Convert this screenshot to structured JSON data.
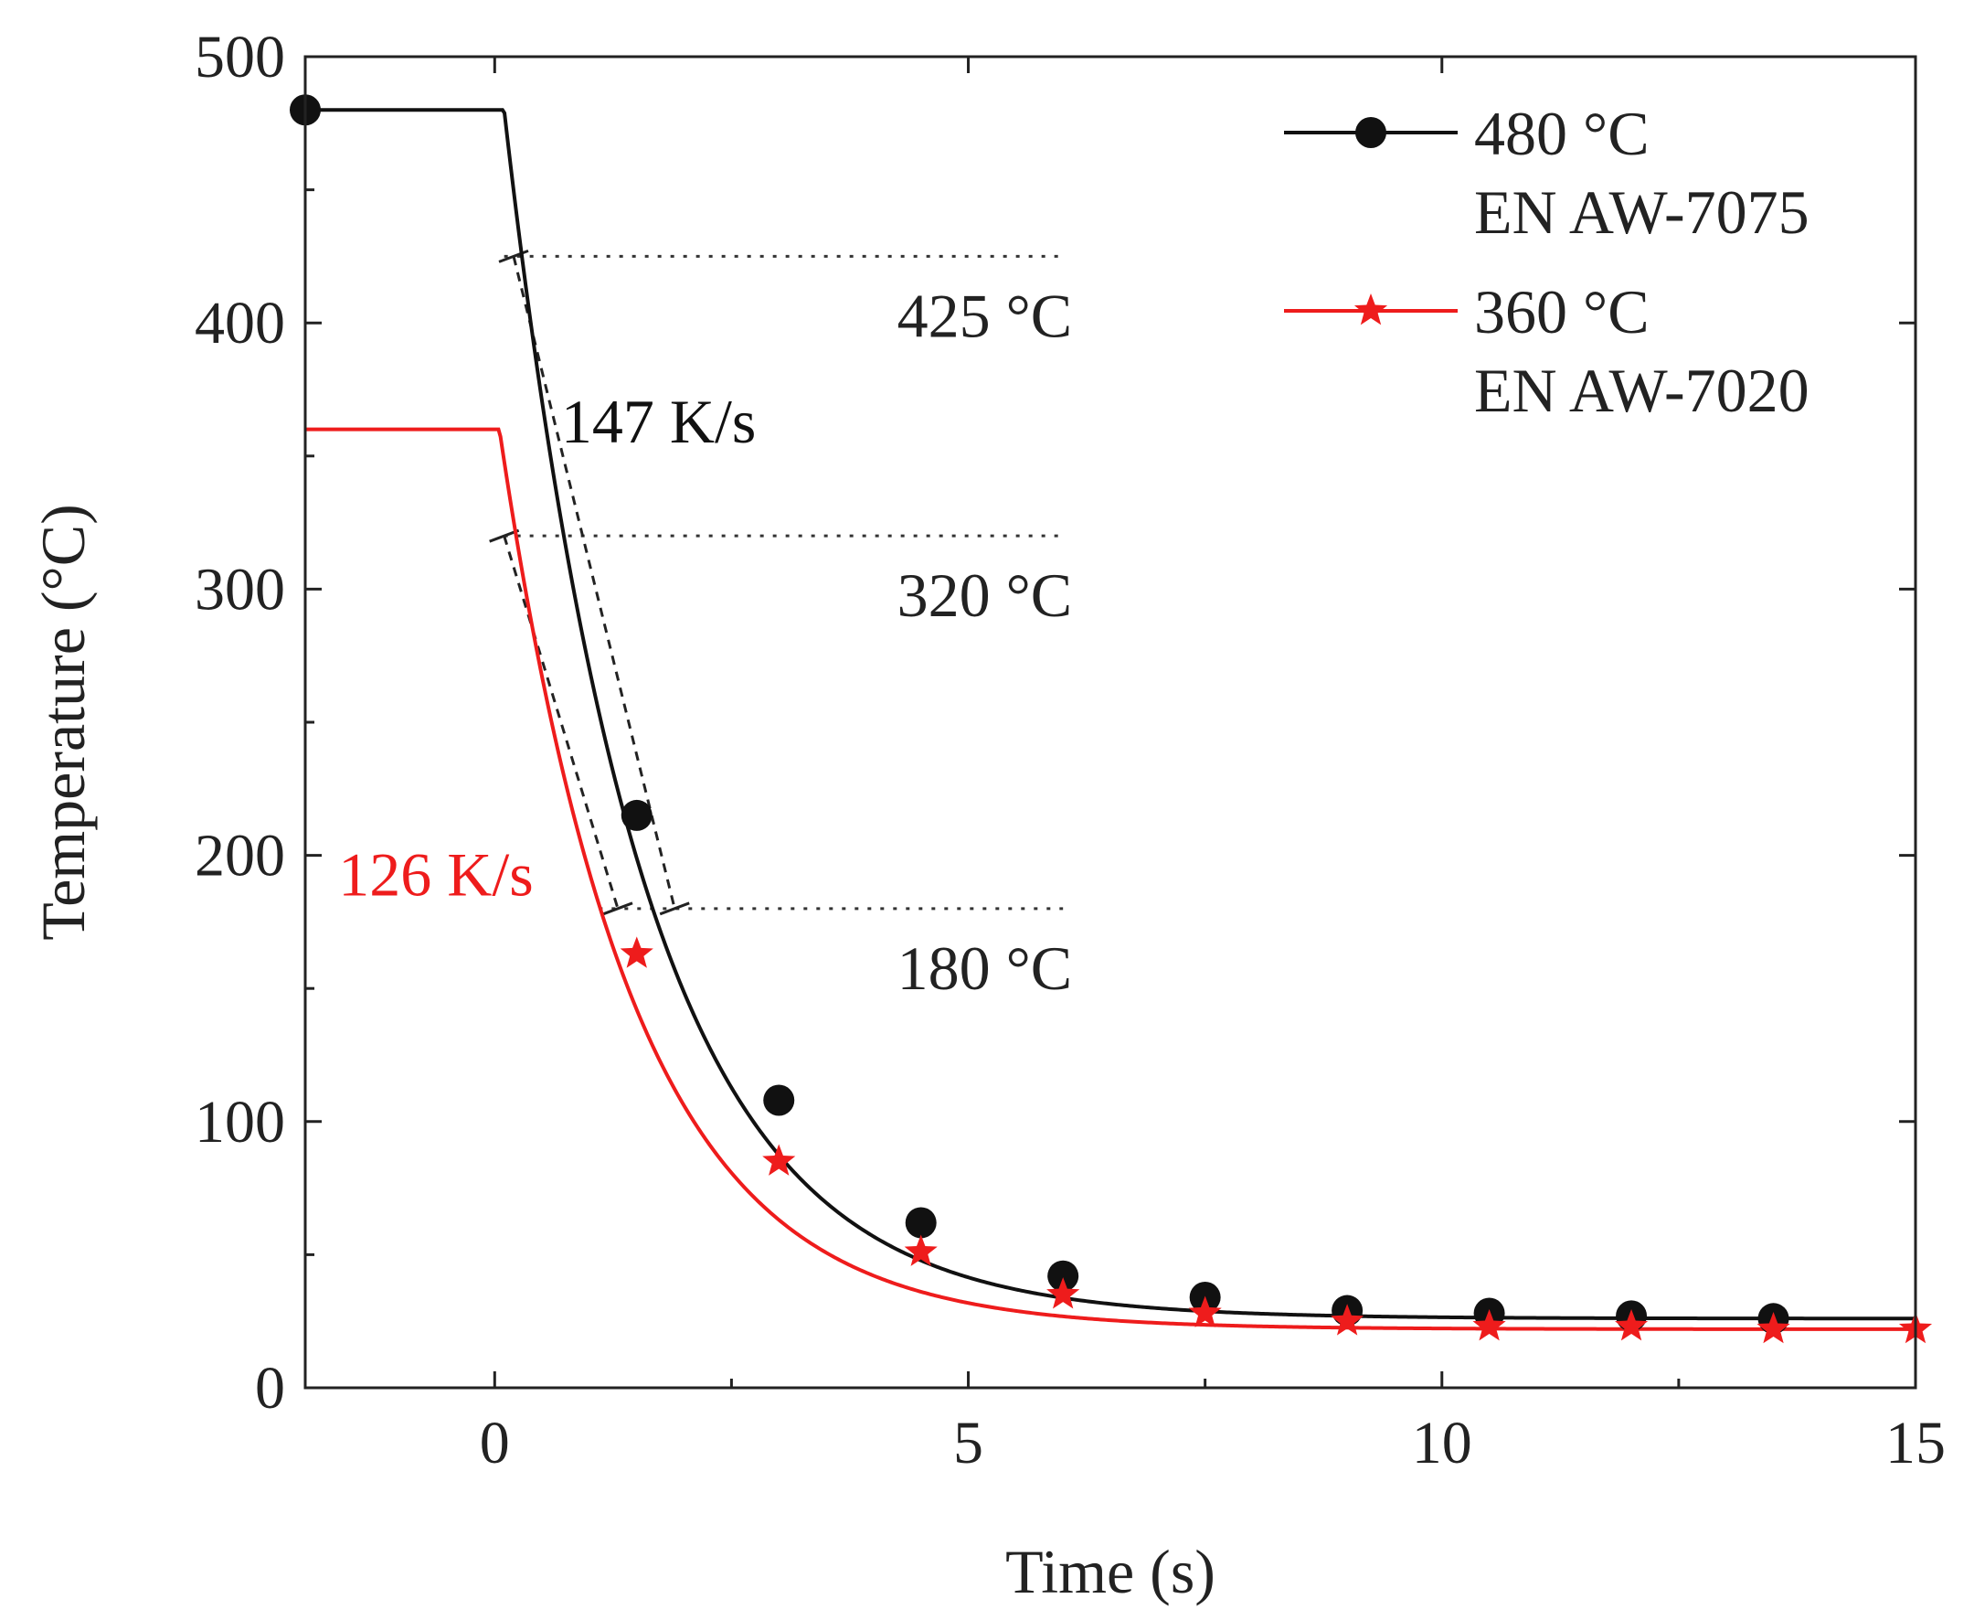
{
  "chart_data": {
    "type": "line",
    "title": "",
    "xlabel": "Time (s)",
    "ylabel": "Temperature (°C)",
    "xlim": [
      -2,
      15
    ],
    "ylim": [
      0,
      500
    ],
    "xticks": [
      0,
      5,
      10,
      15
    ],
    "yticks": [
      0,
      100,
      200,
      300,
      400,
      500
    ],
    "xtick_labels": [
      "0",
      "5",
      "10",
      "15"
    ],
    "ytick_labels": [
      "0",
      "100",
      "200",
      "300",
      "400",
      "500"
    ],
    "grid": false,
    "legend_position": "top-right",
    "series": [
      {
        "name": "480 °C",
        "subtitle": "EN AW-7075",
        "color": "#111111",
        "marker": "circle",
        "hold_temperature": 480,
        "hold_start": -2,
        "cooling_start": 0.1,
        "ambient": 26,
        "tau": 1.45,
        "marker_x": [
          -2,
          1.5,
          3,
          4.5,
          6,
          7.5,
          9,
          10.5,
          12,
          13.5
        ],
        "marker_y": [
          480,
          215,
          108,
          62,
          42,
          34,
          29,
          28,
          27,
          26
        ]
      },
      {
        "name": "360 °C",
        "subtitle": "EN AW-7020",
        "color": "#ee1c1c",
        "marker": "star",
        "hold_temperature": 360,
        "hold_start": -2,
        "cooling_start": 0.05,
        "ambient": 22,
        "tau": 1.4,
        "marker_x": [
          1.5,
          3,
          4.5,
          6,
          7.5,
          9,
          10.5,
          12,
          13.5,
          15
        ],
        "marker_y": [
          163,
          85,
          51,
          35,
          28,
          25,
          23,
          23,
          22,
          22
        ]
      }
    ],
    "reference_lines": [
      {
        "y": 425,
        "label": "425 °C",
        "x_range": [
          0.1,
          6
        ]
      },
      {
        "y": 320,
        "label": "320 °C",
        "x_range": [
          0.1,
          6
        ]
      },
      {
        "y": 180,
        "label": "180 °C",
        "x_range": [
          1.1,
          6
        ]
      }
    ],
    "slope_annotations": [
      {
        "label": "147 K/s",
        "color": "#111111",
        "from": [
          0.2,
          425
        ],
        "to": [
          1.9,
          180
        ]
      },
      {
        "label": "126 K/s",
        "color": "#ee1c1c",
        "from": [
          0.1,
          320
        ],
        "to": [
          1.3,
          180
        ]
      }
    ]
  }
}
